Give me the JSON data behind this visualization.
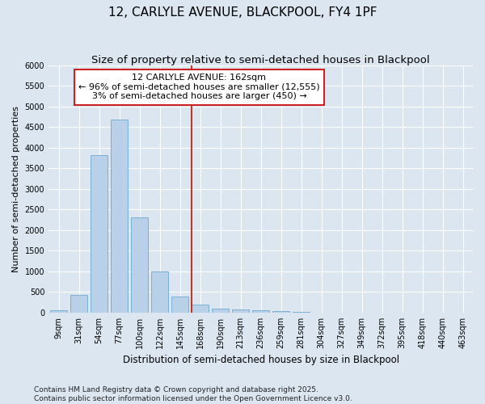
{
  "title": "12, CARLYLE AVENUE, BLACKPOOL, FY4 1PF",
  "subtitle": "Size of property relative to semi-detached houses in Blackpool",
  "xlabel": "Distribution of semi-detached houses by size in Blackpool",
  "ylabel": "Number of semi-detached properties",
  "bins": [
    "9sqm",
    "31sqm",
    "54sqm",
    "77sqm",
    "100sqm",
    "122sqm",
    "145sqm",
    "168sqm",
    "190sqm",
    "213sqm",
    "236sqm",
    "259sqm",
    "281sqm",
    "304sqm",
    "327sqm",
    "349sqm",
    "372sqm",
    "395sqm",
    "418sqm",
    "440sqm",
    "463sqm"
  ],
  "values": [
    50,
    430,
    3820,
    4680,
    2300,
    1000,
    400,
    200,
    100,
    80,
    50,
    30,
    15,
    0,
    0,
    0,
    0,
    0,
    0,
    0,
    0
  ],
  "bar_color": "#b8d0e8",
  "bar_edge_color": "#7aafd4",
  "background_color": "#dce6f0",
  "grid_color": "#ffffff",
  "vline_x": 7,
  "vline_color": "#c0392b",
  "annotation_line1": "12 CARLYLE AVENUE: 162sqm",
  "annotation_line2": "← 96% of semi-detached houses are smaller (12,555)",
  "annotation_line3": "3% of semi-detached houses are larger (450) →",
  "annotation_box_color": "#cc2222",
  "annotation_bg": "#ffffff",
  "ylim": [
    0,
    6000
  ],
  "yticks": [
    0,
    500,
    1000,
    1500,
    2000,
    2500,
    3000,
    3500,
    4000,
    4500,
    5000,
    5500,
    6000
  ],
  "footer": "Contains HM Land Registry data © Crown copyright and database right 2025.\nContains public sector information licensed under the Open Government Licence v3.0.",
  "title_fontsize": 11,
  "subtitle_fontsize": 9.5,
  "tick_fontsize": 7,
  "ylabel_fontsize": 8,
  "xlabel_fontsize": 8.5,
  "footer_fontsize": 6.5,
  "annotation_fontsize": 8
}
